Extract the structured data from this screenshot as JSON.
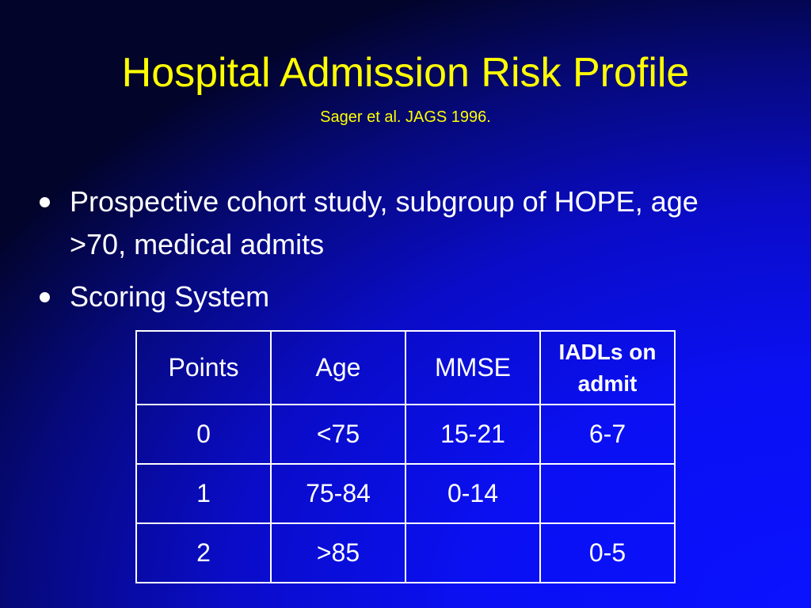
{
  "title": "Hospital Admission Risk Profile",
  "subtitle": "Sager et al. JAGS 1996.",
  "bullets": [
    "Prospective cohort study, subgroup of HOPE, age >70, medical admits",
    "Scoring System"
  ],
  "table": {
    "headers": [
      "Points",
      "Age",
      "MMSE",
      "IADLs on admit"
    ],
    "rows": [
      [
        "0",
        "<75",
        "15-21",
        "6-7"
      ],
      [
        "1",
        "75-84",
        "0-14",
        ""
      ],
      [
        "2",
        ">85",
        "",
        "0-5"
      ]
    ]
  },
  "colors": {
    "title": "#ffff00",
    "text": "#ffffff",
    "background_center": "#0a12ff",
    "background_corner": "#02042a"
  }
}
